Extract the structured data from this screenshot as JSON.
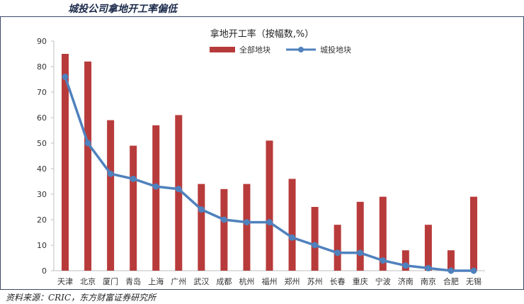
{
  "page_heading": "城投公司拿地开工率偏低",
  "source_note": "资料来源：CRIC，东方财富证券研究所",
  "chart_data": {
    "type": "bar",
    "title": "拿地开工率（按幅数,%）",
    "xlabel": "",
    "ylabel": "",
    "ylim": [
      0,
      90
    ],
    "yticks": [
      0,
      10,
      20,
      30,
      40,
      50,
      60,
      70,
      80,
      90
    ],
    "grid": false,
    "legend_position": "top-right",
    "categories": [
      "天津",
      "北京",
      "厦门",
      "青岛",
      "上海",
      "广州",
      "武汉",
      "成都",
      "杭州",
      "福州",
      "郑州",
      "苏州",
      "长春",
      "重庆",
      "宁波",
      "济南",
      "南京",
      "合肥",
      "无锡"
    ],
    "series": [
      {
        "name": "全部地块",
        "kind": "bar",
        "color": "#b83b3b",
        "values": [
          85,
          82,
          59,
          49,
          57,
          61,
          34,
          32,
          34,
          51,
          36,
          25,
          18,
          27,
          29,
          8,
          18,
          8,
          29
        ]
      },
      {
        "name": "城投地块",
        "kind": "line",
        "color": "#4f81bd",
        "values": [
          76,
          50,
          38,
          36,
          33,
          32,
          24,
          20,
          19,
          19,
          13,
          10,
          7,
          7,
          4,
          2,
          1,
          0,
          0
        ]
      }
    ]
  }
}
